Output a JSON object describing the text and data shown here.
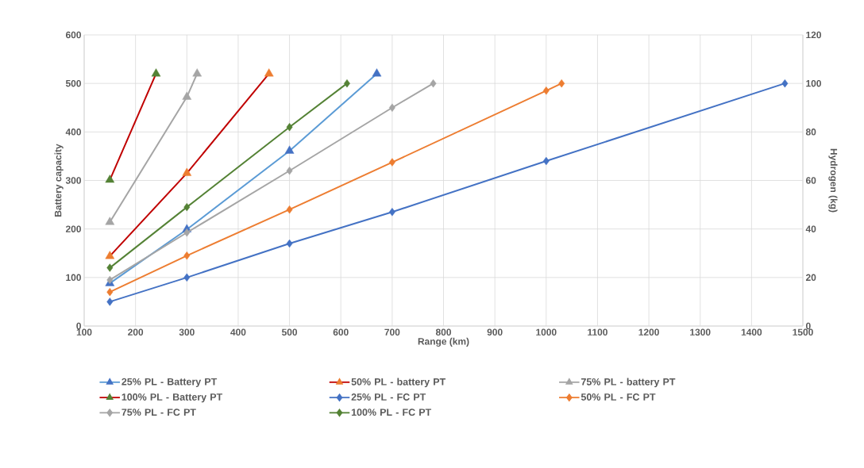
{
  "chart_data": {
    "type": "line",
    "xlabel": "Range (km)",
    "ylabel": "Battery capacity",
    "y2label": "Hydrogen (kg)",
    "xlim": [
      100,
      1500
    ],
    "xticks": [
      100,
      200,
      300,
      400,
      500,
      600,
      700,
      800,
      900,
      1000,
      1100,
      1200,
      1300,
      1400,
      1500
    ],
    "ylim": [
      0,
      600
    ],
    "yticks": [
      0,
      100,
      200,
      300,
      400,
      500,
      600
    ],
    "y2lim": [
      0,
      120
    ],
    "y2ticks": [
      0,
      20,
      40,
      60,
      80,
      100,
      120
    ],
    "grid": true,
    "legend": "bottom",
    "series": [
      {
        "name": "25% PL - Battery PT",
        "color": "#5b9bd5",
        "colors": [
          "#4472c4",
          "#4472c4",
          "#4472c4",
          "#4472c4"
        ],
        "marker": "triangle",
        "x": [
          150,
          300,
          500,
          670
        ],
        "values": [
          88,
          199,
          361,
          520
        ]
      },
      {
        "name": "50% PL - battery PT",
        "color": "#c00000",
        "colors": [
          "#ed7d31",
          "#ed7d31",
          "#ed7d31"
        ],
        "marker": "triangle",
        "x": [
          150,
          300,
          460
        ],
        "values": [
          144,
          315,
          520
        ]
      },
      {
        "name": "75% PL - battery PT",
        "color": "#a5a5a5",
        "colors": [
          "#a5a5a5",
          "#a5a5a5",
          "#a5a5a5"
        ],
        "marker": "triangle",
        "x": [
          150,
          300,
          320
        ],
        "values": [
          214,
          472,
          520
        ]
      },
      {
        "name": "100% PL - Battery PT",
        "color": "#c00000",
        "colors": [
          "#548235",
          "#548235"
        ],
        "marker": "triangle",
        "x": [
          150,
          240
        ],
        "values": [
          301,
          520
        ]
      },
      {
        "name": "25% PL - FC PT",
        "color": "#4472c4",
        "colors": [
          "#4472c4",
          "#4472c4",
          "#4472c4",
          "#4472c4",
          "#4472c4",
          "#4472c4"
        ],
        "marker": "diamond",
        "axis": "y2",
        "x": [
          150,
          300,
          500,
          700,
          1000,
          1465
        ],
        "values": [
          10,
          20,
          34,
          47,
          68,
          100
        ]
      },
      {
        "name": "50% PL - FC PT",
        "color": "#ed7d31",
        "colors": [
          "#ed7d31",
          "#ed7d31",
          "#ed7d31",
          "#ed7d31",
          "#ed7d31",
          "#ed7d31"
        ],
        "marker": "diamond",
        "axis": "y2",
        "x": [
          150,
          300,
          500,
          700,
          1000,
          1030
        ],
        "values": [
          14,
          29,
          48,
          67.5,
          97,
          100
        ]
      },
      {
        "name": "75% PL - FC PT",
        "color": "#a5a5a5",
        "colors": [
          "#a5a5a5",
          "#a5a5a5",
          "#a5a5a5",
          "#a5a5a5",
          "#a5a5a5"
        ],
        "marker": "diamond",
        "axis": "y2",
        "x": [
          150,
          300,
          500,
          700,
          780
        ],
        "values": [
          19,
          38.5,
          64,
          90,
          100
        ]
      },
      {
        "name": "100% PL - FC PT",
        "color": "#548235",
        "colors": [
          "#548235",
          "#548235",
          "#548235",
          "#548235"
        ],
        "marker": "diamond",
        "axis": "y2",
        "x": [
          150,
          300,
          500,
          612
        ],
        "values": [
          24,
          49,
          82,
          100
        ]
      }
    ]
  }
}
